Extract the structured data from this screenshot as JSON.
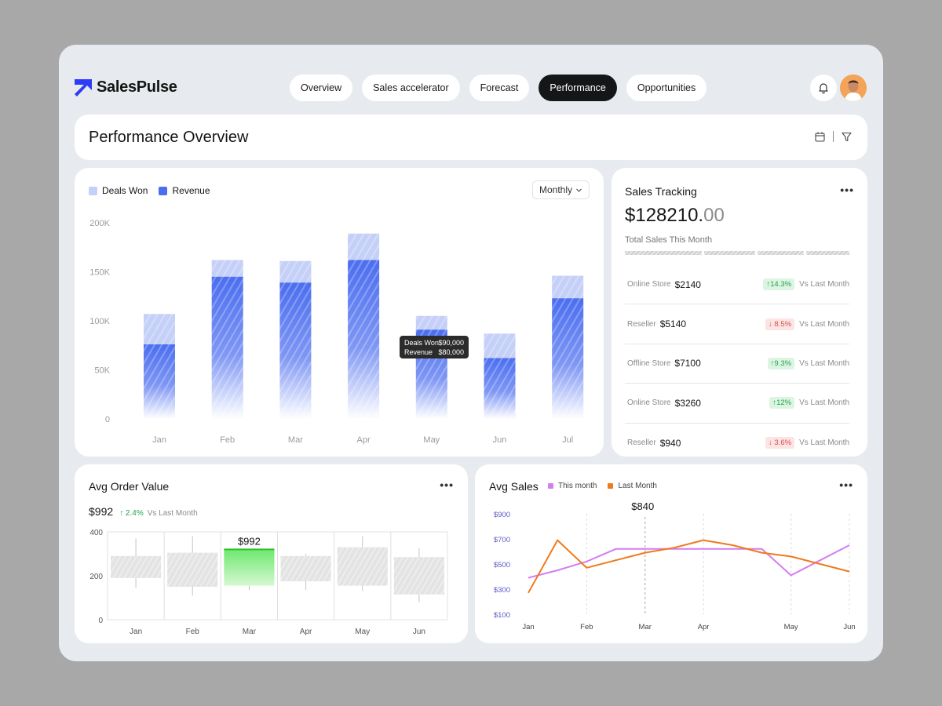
{
  "brand": {
    "name": "SalesPulse",
    "color": "#2d3cf5"
  },
  "nav": [
    {
      "label": "Overview",
      "active": false
    },
    {
      "label": "Sales accelerator",
      "active": false
    },
    {
      "label": "Forecast",
      "active": false
    },
    {
      "label": "Performance",
      "active": true
    },
    {
      "label": "Opportunities",
      "active": false
    }
  ],
  "header_icons": {
    "bell": "bell-icon",
    "avatar": "user-avatar"
  },
  "page": {
    "title": "Performance Overview",
    "tools": [
      "calendar-icon",
      "filter-icon"
    ]
  },
  "revenue_chart": {
    "legend": {
      "deals_won": "Deals Won",
      "revenue": "Revenue"
    },
    "period": "Monthly",
    "tooltip": {
      "deals_label": "Deals Won",
      "deals_value": "$90,000",
      "revenue_label": "Revenue",
      "revenue_value": "$80,000"
    }
  },
  "chart_data": [
    {
      "type": "bar",
      "title": "",
      "categories": [
        "Jan",
        "Feb",
        "Mar",
        "Apr",
        "May",
        "Jun",
        "Jul"
      ],
      "series": [
        {
          "name": "Revenue",
          "values": [
            76,
            145,
            139,
            162,
            91,
            62,
            123
          ]
        },
        {
          "name": "Deals Won",
          "values": [
            31,
            17,
            22,
            27,
            14,
            25,
            23
          ]
        }
      ],
      "stacked": true,
      "ylim": [
        0,
        200
      ],
      "yticks": [
        "0",
        "50K",
        "100K",
        "150K",
        "200K"
      ],
      "colors": {
        "Revenue": "#4b6ef0",
        "Deals Won": "#c5d0f8"
      }
    },
    {
      "type": "candlestick",
      "title": "Avg Order Value",
      "categories": [
        "Jan",
        "Feb",
        "Mar",
        "Apr",
        "May",
        "Jun"
      ],
      "boxes": [
        {
          "low": 190,
          "high": 290
        },
        {
          "low": 150,
          "high": 305
        },
        {
          "low": 155,
          "high": 320
        },
        {
          "low": 175,
          "high": 290
        },
        {
          "low": 155,
          "high": 330
        },
        {
          "low": 115,
          "high": 285
        }
      ],
      "whiskers": [
        {
          "low": 145,
          "high": 370
        },
        {
          "low": 110,
          "high": 380
        },
        {
          "low": 135,
          "high": 320
        },
        {
          "low": 135,
          "high": 300
        },
        {
          "low": 130,
          "high": 380
        },
        {
          "low": 80,
          "high": 325
        }
      ],
      "highlight": {
        "index": 2,
        "label": "$992"
      },
      "ylim": [
        0,
        400
      ],
      "yticks": [
        "0",
        "200",
        "400"
      ]
    },
    {
      "type": "line",
      "title": "Avg Sales",
      "x": [
        "Jan",
        "",
        "Feb",
        "",
        "Mar",
        "",
        "Apr",
        "",
        "",
        "May",
        "",
        "Jun"
      ],
      "xlabels": [
        "Jan",
        "Feb",
        "Mar",
        "Apr",
        "May",
        "Jun"
      ],
      "series": [
        {
          "name": "This month",
          "values": [
            390,
            450,
            520,
            620,
            620,
            620,
            620,
            620,
            620,
            410,
            530,
            650
          ]
        },
        {
          "name": "Last Month",
          "values": [
            270,
            690,
            470,
            530,
            590,
            630,
            690,
            650,
            590,
            560,
            500,
            440
          ]
        }
      ],
      "ylim": [
        100,
        900
      ],
      "yticks": [
        "$100",
        "$300",
        "$500",
        "$700",
        "$900"
      ],
      "annotation": "$840",
      "colors": {
        "This month": "#d47df0",
        "Last Month": "#f07a1a"
      }
    }
  ],
  "sales_tracking": {
    "title": "Sales Tracking",
    "total_main": "$128210.",
    "total_cents": "00",
    "total_label": "Total Sales This Month",
    "rows": [
      {
        "channel": "Online Store",
        "amount": "$2140",
        "change": "↑14.3%",
        "direction": "up",
        "compare": "Vs Last Month"
      },
      {
        "channel": "Reseller",
        "amount": "$5140",
        "change": "↓ 8.5%",
        "direction": "down",
        "compare": "Vs Last Month"
      },
      {
        "channel": "Offline Store",
        "amount": "$7100",
        "change": "↑9.3%",
        "direction": "up",
        "compare": "Vs Last Month"
      },
      {
        "channel": "Online Store",
        "amount": "$3260",
        "change": "↑12%",
        "direction": "up",
        "compare": "Vs Last Month"
      },
      {
        "channel": "Reseller",
        "amount": "$940",
        "change": "↓ 3.6%",
        "direction": "down",
        "compare": "Vs Last Month"
      }
    ]
  },
  "avg_order": {
    "title": "Avg Order Value",
    "value": "$992",
    "change": "↑ 2.4%",
    "compare": "Vs Last Month"
  },
  "avg_sales": {
    "title": "Avg Sales",
    "legend_this": "This month",
    "legend_last": "Last Month"
  }
}
